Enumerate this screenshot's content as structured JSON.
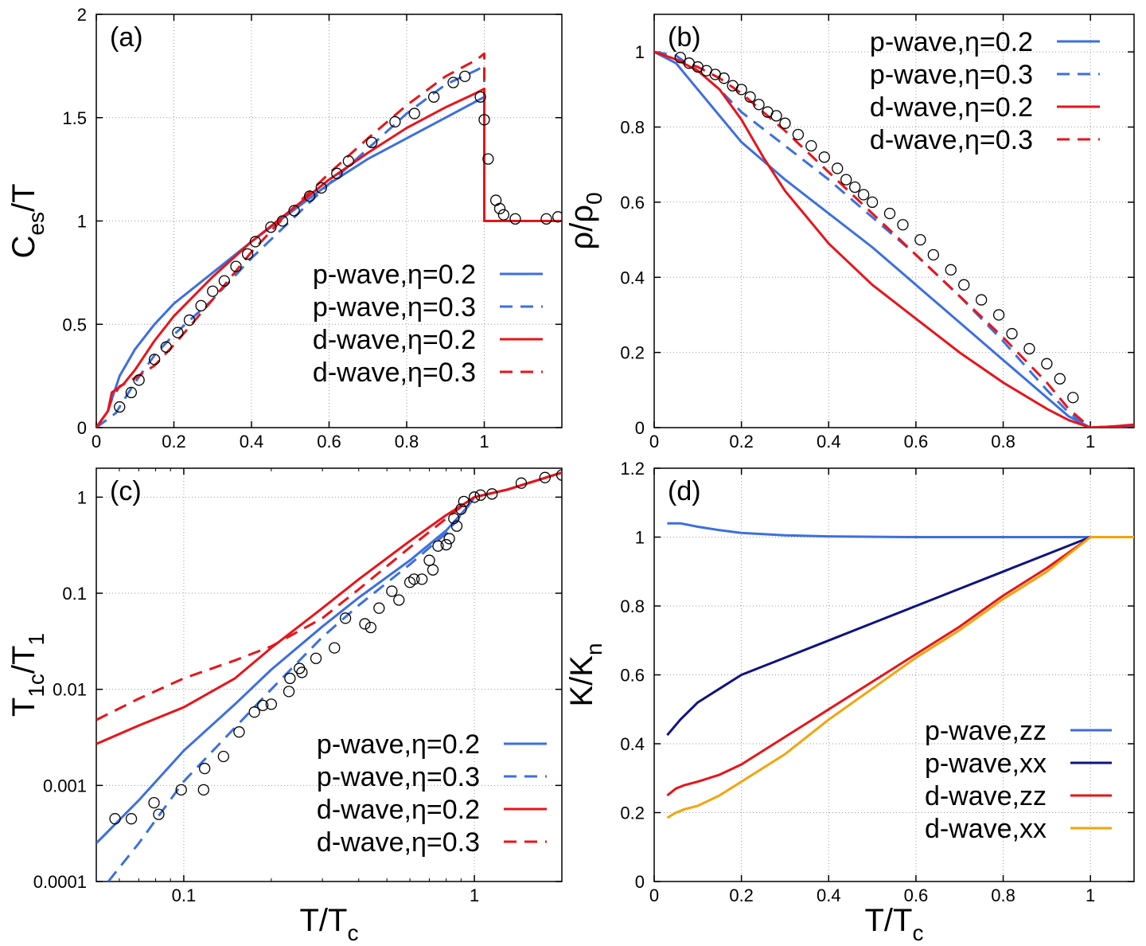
{
  "colors": {
    "p_blue": "#3d6fde",
    "d_red": "#e8141a",
    "navy": "#10137f",
    "orange": "#f5a30a",
    "marker": "#000000"
  },
  "chart_data": [
    {
      "id": "a",
      "type": "line",
      "panel_label": "(a)",
      "ylabel_main": "C",
      "ylabel_sub": "es",
      "ylabel_tail": "/T",
      "xlabel": "",
      "xlim": [
        0,
        1.2
      ],
      "ylim": [
        0,
        2
      ],
      "xticks": [
        0,
        0.2,
        0.4,
        0.6,
        0.8,
        1
      ],
      "xtick_labels": [
        "0",
        "0.2",
        "0.4",
        "0.6",
        "0.8",
        "1"
      ],
      "yticks": [
        0,
        0.5,
        1,
        1.5,
        2
      ],
      "ytick_labels": [
        "0",
        "0.5",
        "1",
        "1.5",
        "2"
      ],
      "legend_position": "lower-right",
      "series": [
        {
          "name": "p-wave,η=0.2",
          "color": "#3d6fde",
          "dash": "solid",
          "x": [
            0,
            0.03,
            0.06,
            0.1,
            0.15,
            0.2,
            0.3,
            0.4,
            0.5,
            0.6,
            0.7,
            0.8,
            0.9,
            0.98,
            1,
            1,
            1.2
          ],
          "y": [
            0,
            0.08,
            0.25,
            0.38,
            0.5,
            0.6,
            0.75,
            0.9,
            1.04,
            1.18,
            1.3,
            1.4,
            1.5,
            1.58,
            1.6,
            1.0,
            1.0
          ]
        },
        {
          "name": "p-wave,η=0.3",
          "color": "#3d6fde",
          "dash": "dashed",
          "x": [
            0,
            0.05,
            0.1,
            0.15,
            0.2,
            0.3,
            0.4,
            0.5,
            0.6,
            0.7,
            0.8,
            0.9,
            0.98,
            1,
            1,
            1.2
          ],
          "y": [
            0,
            0.07,
            0.22,
            0.35,
            0.45,
            0.62,
            0.82,
            1.0,
            1.18,
            1.35,
            1.52,
            1.66,
            1.73,
            1.75,
            1.0,
            1.0
          ]
        },
        {
          "name": "d-wave,η=0.2",
          "color": "#e8141a",
          "dash": "solid",
          "x": [
            0,
            0.03,
            0.04,
            0.07,
            0.1,
            0.15,
            0.2,
            0.3,
            0.4,
            0.5,
            0.6,
            0.7,
            0.8,
            0.9,
            0.98,
            1,
            1,
            1.2
          ],
          "y": [
            0,
            0.08,
            0.17,
            0.21,
            0.28,
            0.42,
            0.54,
            0.73,
            0.9,
            1.05,
            1.2,
            1.33,
            1.45,
            1.55,
            1.62,
            1.64,
            1.0,
            1.0
          ]
        },
        {
          "name": "d-wave,η=0.3",
          "color": "#e8141a",
          "dash": "dashed",
          "x": [
            0,
            0.03,
            0.04,
            0.06,
            0.1,
            0.15,
            0.2,
            0.3,
            0.4,
            0.5,
            0.6,
            0.7,
            0.8,
            0.9,
            0.98,
            1,
            1,
            1.2
          ],
          "y": [
            0,
            0.08,
            0.14,
            0.2,
            0.24,
            0.3,
            0.4,
            0.62,
            0.85,
            1.05,
            1.23,
            1.4,
            1.56,
            1.7,
            1.78,
            1.81,
            1.0,
            1.0
          ]
        }
      ],
      "markers": {
        "x": [
          0.06,
          0.09,
          0.11,
          0.15,
          0.18,
          0.21,
          0.24,
          0.27,
          0.3,
          0.33,
          0.36,
          0.39,
          0.41,
          0.45,
          0.48,
          0.51,
          0.55,
          0.58,
          0.62,
          0.65,
          0.71,
          0.77,
          0.82,
          0.87,
          0.92,
          0.95,
          0.99,
          1.0,
          1.01,
          1.03,
          1.04,
          1.05,
          1.08,
          1.16,
          1.19
        ],
        "y": [
          0.1,
          0.17,
          0.23,
          0.33,
          0.39,
          0.46,
          0.52,
          0.59,
          0.66,
          0.71,
          0.78,
          0.84,
          0.9,
          0.97,
          1.0,
          1.05,
          1.12,
          1.16,
          1.23,
          1.29,
          1.38,
          1.48,
          1.52,
          1.6,
          1.67,
          1.7,
          1.6,
          1.49,
          1.3,
          1.1,
          1.06,
          1.03,
          1.01,
          1.01,
          1.02
        ]
      }
    },
    {
      "id": "b",
      "type": "line",
      "panel_label": "(b)",
      "ylabel_main": "ρ/ρ",
      "ylabel_sub": "0",
      "ylabel_tail": "",
      "xlabel": "",
      "xlim": [
        0,
        1.1
      ],
      "ylim": [
        0,
        1.1
      ],
      "xticks": [
        0,
        0.2,
        0.4,
        0.6,
        0.8,
        1
      ],
      "xtick_labels": [
        "0",
        "0.2",
        "0.4",
        "0.6",
        "0.8",
        "1"
      ],
      "yticks": [
        0,
        0.2,
        0.4,
        0.6,
        0.8,
        1
      ],
      "ytick_labels": [
        "0",
        "0.2",
        "0.4",
        "0.6",
        "0.8",
        "1"
      ],
      "legend_position": "top-right",
      "series": [
        {
          "name": "p-wave,η=0.2",
          "color": "#3d6fde",
          "dash": "solid",
          "x": [
            0,
            0.05,
            0.1,
            0.15,
            0.2,
            0.3,
            0.4,
            0.5,
            0.6,
            0.7,
            0.8,
            0.9,
            0.95,
            1,
            1.05,
            1.1
          ],
          "y": [
            1,
            0.97,
            0.9,
            0.83,
            0.76,
            0.66,
            0.57,
            0.48,
            0.38,
            0.28,
            0.18,
            0.08,
            0.03,
            0,
            0.003,
            0.005
          ]
        },
        {
          "name": "p-wave,η=0.3",
          "color": "#3d6fde",
          "dash": "dashed",
          "x": [
            0,
            0.05,
            0.1,
            0.15,
            0.2,
            0.3,
            0.4,
            0.5,
            0.6,
            0.7,
            0.8,
            0.9,
            0.95,
            1,
            1.05,
            1.1
          ],
          "y": [
            1,
            0.99,
            0.95,
            0.9,
            0.84,
            0.75,
            0.66,
            0.56,
            0.46,
            0.35,
            0.23,
            0.1,
            0.04,
            0,
            0.003,
            0.005
          ]
        },
        {
          "name": "d-wave,η=0.2",
          "color": "#e8141a",
          "dash": "solid",
          "x": [
            0,
            0.05,
            0.1,
            0.15,
            0.2,
            0.25,
            0.3,
            0.4,
            0.5,
            0.6,
            0.7,
            0.8,
            0.9,
            0.95,
            1,
            1.05,
            1.1
          ],
          "y": [
            1,
            0.98,
            0.95,
            0.9,
            0.82,
            0.72,
            0.63,
            0.49,
            0.38,
            0.29,
            0.2,
            0.12,
            0.05,
            0.02,
            0,
            0.003,
            0.008
          ]
        },
        {
          "name": "d-wave,η=0.3",
          "color": "#e8141a",
          "dash": "dashed",
          "x": [
            0,
            0.05,
            0.1,
            0.15,
            0.2,
            0.3,
            0.4,
            0.5,
            0.6,
            0.7,
            0.8,
            0.9,
            0.95,
            1,
            1.05,
            1.1
          ],
          "y": [
            1,
            0.98,
            0.96,
            0.93,
            0.89,
            0.79,
            0.68,
            0.57,
            0.46,
            0.35,
            0.24,
            0.12,
            0.05,
            0,
            0.003,
            0.005
          ]
        }
      ],
      "markers": {
        "x": [
          0.06,
          0.08,
          0.1,
          0.12,
          0.14,
          0.16,
          0.18,
          0.2,
          0.22,
          0.24,
          0.26,
          0.28,
          0.3,
          0.33,
          0.36,
          0.39,
          0.42,
          0.44,
          0.46,
          0.48,
          0.5,
          0.54,
          0.57,
          0.61,
          0.64,
          0.68,
          0.71,
          0.75,
          0.79,
          0.82,
          0.86,
          0.9,
          0.93,
          0.96
        ],
        "y": [
          0.985,
          0.97,
          0.96,
          0.95,
          0.94,
          0.93,
          0.91,
          0.9,
          0.88,
          0.86,
          0.84,
          0.83,
          0.81,
          0.78,
          0.75,
          0.72,
          0.69,
          0.66,
          0.64,
          0.62,
          0.6,
          0.57,
          0.54,
          0.5,
          0.46,
          0.42,
          0.38,
          0.34,
          0.3,
          0.25,
          0.21,
          0.17,
          0.13,
          0.08
        ]
      }
    },
    {
      "id": "c",
      "type": "line",
      "scale": "log-log",
      "panel_label": "(c)",
      "ylabel_main": "T",
      "ylabel_sub": "1c",
      "ylabel_tail": "/T",
      "ylabel_sub2": "1",
      "xlabel_main": "T/T",
      "xlabel_sub": "c",
      "xlim": [
        0.05,
        2
      ],
      "ylim": [
        0.0001,
        2
      ],
      "xticks": [
        0.1,
        1
      ],
      "xtick_labels": [
        "0.1",
        "1"
      ],
      "yticks": [
        0.0001,
        0.001,
        0.01,
        0.1,
        1
      ],
      "ytick_labels": [
        "0.0001",
        "0.001",
        "0.01",
        "0.1",
        "1"
      ],
      "legend_position": "lower-right",
      "series": [
        {
          "name": "p-wave,η=0.2",
          "color": "#3d6fde",
          "dash": "solid",
          "x": [
            0.05,
            0.07,
            0.1,
            0.15,
            0.2,
            0.3,
            0.4,
            0.6,
            0.8,
            0.95,
            1,
            1.3,
            2
          ],
          "y": [
            0.00025,
            0.0007,
            0.0023,
            0.007,
            0.016,
            0.045,
            0.09,
            0.22,
            0.45,
            0.8,
            1.0,
            1.2,
            1.8
          ]
        },
        {
          "name": "p-wave,η=0.3",
          "color": "#3d6fde",
          "dash": "dashed",
          "x": [
            0.055,
            0.07,
            0.1,
            0.15,
            0.2,
            0.3,
            0.4,
            0.6,
            0.8,
            0.95,
            1,
            1.3,
            2
          ],
          "y": [
            0.0001,
            0.00025,
            0.0011,
            0.004,
            0.01,
            0.035,
            0.075,
            0.2,
            0.42,
            0.8,
            1.0,
            1.2,
            1.8
          ]
        },
        {
          "name": "d-wave,η=0.2",
          "color": "#e8141a",
          "dash": "solid",
          "x": [
            0.05,
            0.07,
            0.1,
            0.15,
            0.2,
            0.3,
            0.4,
            0.6,
            0.8,
            0.95,
            1,
            1.3,
            2
          ],
          "y": [
            0.0027,
            0.0042,
            0.0065,
            0.013,
            0.027,
            0.07,
            0.14,
            0.35,
            0.65,
            0.9,
            1.0,
            1.2,
            1.8
          ]
        },
        {
          "name": "d-wave,η=0.3",
          "color": "#e8141a",
          "dash": "dashed",
          "x": [
            0.05,
            0.07,
            0.1,
            0.15,
            0.2,
            0.3,
            0.4,
            0.6,
            0.8,
            0.95,
            1,
            1.3,
            2
          ],
          "y": [
            0.0048,
            0.008,
            0.013,
            0.02,
            0.028,
            0.055,
            0.11,
            0.3,
            0.6,
            0.9,
            1.0,
            1.2,
            1.8
          ]
        }
      ],
      "markers": {
        "x": [
          0.058,
          0.066,
          0.079,
          0.082,
          0.098,
          0.117,
          0.118,
          0.137,
          0.155,
          0.175,
          0.187,
          0.2,
          0.23,
          0.232,
          0.25,
          0.255,
          0.285,
          0.33,
          0.36,
          0.42,
          0.44,
          0.47,
          0.52,
          0.55,
          0.6,
          0.62,
          0.66,
          0.7,
          0.72,
          0.75,
          0.8,
          0.82,
          0.85,
          0.87,
          0.9,
          0.92,
          1.0,
          1.05,
          1.15,
          1.45,
          1.75,
          2.0
        ],
        "y": [
          0.00045,
          0.00045,
          0.00066,
          0.0005,
          0.0009,
          0.0009,
          0.0015,
          0.002,
          0.0036,
          0.0058,
          0.0068,
          0.007,
          0.0095,
          0.013,
          0.0165,
          0.015,
          0.021,
          0.027,
          0.055,
          0.048,
          0.044,
          0.07,
          0.105,
          0.085,
          0.13,
          0.14,
          0.14,
          0.22,
          0.175,
          0.31,
          0.32,
          0.37,
          0.6,
          0.5,
          0.75,
          0.9,
          1.0,
          1.05,
          1.08,
          1.4,
          1.6,
          1.7
        ]
      }
    },
    {
      "id": "d",
      "type": "line",
      "panel_label": "(d)",
      "ylabel_main": "K/K",
      "ylabel_sub": "n",
      "ylabel_tail": "",
      "xlabel_main": "T/T",
      "xlabel_sub": "c",
      "xlim": [
        0,
        1.1
      ],
      "ylim": [
        0,
        1.2
      ],
      "xticks": [
        0,
        0.2,
        0.4,
        0.6,
        0.8,
        1
      ],
      "xtick_labels": [
        "0",
        "0.2",
        "0.4",
        "0.6",
        "0.8",
        "1"
      ],
      "yticks": [
        0,
        0.2,
        0.4,
        0.6,
        0.8,
        1,
        1.2
      ],
      "ytick_labels": [
        "0",
        "0.2",
        "0.4",
        "0.6",
        "0.8",
        "1",
        "1.2"
      ],
      "legend_position": "lower-right",
      "series": [
        {
          "name": "p-wave,zz",
          "color": "#3d6fde",
          "dash": "solid",
          "x": [
            0.03,
            0.06,
            0.1,
            0.15,
            0.2,
            0.3,
            0.4,
            0.6,
            0.8,
            1.0,
            1.1
          ],
          "y": [
            1.04,
            1.04,
            1.03,
            1.02,
            1.012,
            1.005,
            1.002,
            1.0,
            1.0,
            1.0,
            1.0
          ]
        },
        {
          "name": "p-wave,xx",
          "color": "#10137f",
          "dash": "solid",
          "x": [
            0.03,
            0.06,
            0.1,
            0.15,
            0.2,
            0.3,
            0.4,
            0.5,
            0.6,
            0.7,
            0.8,
            0.9,
            1.0,
            1.1
          ],
          "y": [
            0.425,
            0.47,
            0.52,
            0.56,
            0.6,
            0.65,
            0.7,
            0.75,
            0.8,
            0.85,
            0.9,
            0.95,
            1.0,
            1.0
          ]
        },
        {
          "name": "d-wave,zz",
          "color": "#e8141a",
          "dash": "solid",
          "x": [
            0.03,
            0.05,
            0.07,
            0.1,
            0.15,
            0.2,
            0.3,
            0.4,
            0.5,
            0.6,
            0.7,
            0.8,
            0.9,
            1.0,
            1.1
          ],
          "y": [
            0.25,
            0.27,
            0.28,
            0.29,
            0.31,
            0.34,
            0.42,
            0.5,
            0.58,
            0.66,
            0.74,
            0.83,
            0.91,
            1.0,
            1.0
          ]
        },
        {
          "name": "d-wave,xx",
          "color": "#f5a30a",
          "dash": "solid",
          "x": [
            0.03,
            0.05,
            0.07,
            0.1,
            0.15,
            0.2,
            0.3,
            0.4,
            0.5,
            0.6,
            0.7,
            0.8,
            0.9,
            1.0,
            1.1
          ],
          "y": [
            0.185,
            0.2,
            0.21,
            0.22,
            0.25,
            0.29,
            0.37,
            0.47,
            0.56,
            0.65,
            0.73,
            0.82,
            0.9,
            1.0,
            1.0
          ]
        }
      ],
      "markers": null
    }
  ]
}
